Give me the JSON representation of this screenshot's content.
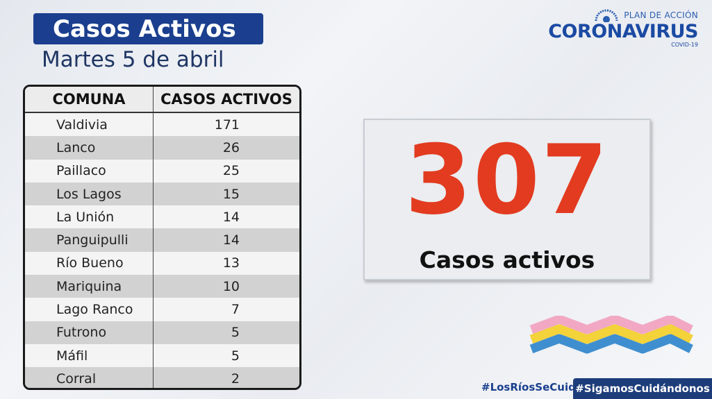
{
  "header": {
    "title": "Casos Activos",
    "subtitle": "Martes 5 de abril"
  },
  "logo": {
    "plan": "PLAN DE ACCIÓN",
    "brand": "CORONAVIRUS",
    "covid": "COVID-19"
  },
  "table": {
    "headers": [
      "COMUNA",
      "CASOS ACTIVOS"
    ],
    "rows": [
      {
        "comuna": "Valdivia",
        "casos": "171"
      },
      {
        "comuna": "Lanco",
        "casos": "26"
      },
      {
        "comuna": "Paillaco",
        "casos": "25"
      },
      {
        "comuna": "Los Lagos",
        "casos": "15"
      },
      {
        "comuna": "La Unión",
        "casos": "14"
      },
      {
        "comuna": "Panguipulli",
        "casos": "14"
      },
      {
        "comuna": "Río Bueno",
        "casos": "13"
      },
      {
        "comuna": "Mariquina",
        "casos": "10"
      },
      {
        "comuna": "Lago Ranco",
        "casos": "7"
      },
      {
        "comuna": "Futrono",
        "casos": "5"
      },
      {
        "comuna": "Máfil",
        "casos": "5"
      },
      {
        "comuna": "Corral",
        "casos": "2"
      }
    ]
  },
  "total": {
    "value": "307",
    "label": "Casos activos"
  },
  "footer": {
    "tag1": "#LosRíosSeCuida",
    "tag2": "#SigamosCuidándonos"
  },
  "colors": {
    "title_bg": "#1b3f8e",
    "total_number": "#e23b20",
    "wave_pink": "#f2a8c2",
    "wave_yellow": "#f3d23a",
    "wave_blue": "#3f8fd0"
  }
}
